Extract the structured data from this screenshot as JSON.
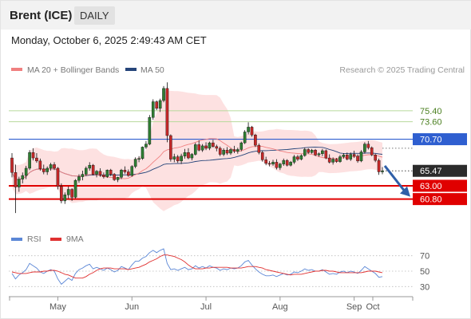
{
  "header": {
    "title": "Brent (ICE)",
    "timeframe": "DAILY",
    "date": "Monday, October 6, 2025 2:49:43 AM CET"
  },
  "legend": {
    "ma20_label": "MA 20 + Bollinger Bands",
    "ma50_label": "MA 50",
    "credit": "Research © 2025 Trading Central",
    "rsi_label": "RSI",
    "rsi_ma_label": "9MA"
  },
  "colors": {
    "candle_up": "#2e7d32",
    "candle_down": "#c62828",
    "bollinger_fill": "#fddcdc",
    "ma20": "#f08080",
    "ma50": "#26457a",
    "resistance_line": "#2f5fd0",
    "support_line": "#e00000",
    "target_line": "#b7d99b",
    "target_text": "#4a7f1f",
    "rsi": "#5b87d6",
    "rsi_ma": "#e03030",
    "arrow": "#2f5fa8",
    "last_price_tag": "#2b2b2b"
  },
  "chart_data": [
    {
      "type": "candlestick",
      "title": "Brent (ICE)",
      "ylim": [
        56.4,
        80.4
      ],
      "x_ticks": [
        "May",
        "Jun",
        "Jul",
        "Aug",
        "Sep",
        "Oct"
      ],
      "levels": {
        "targets": [
          "75.40",
          "73.60"
        ],
        "resistance": "70.70",
        "last": "65.47",
        "supports": [
          "63.00",
          "60.80"
        ]
      },
      "forecast_arrow": {
        "from": 66.3,
        "to": 61.6,
        "direction": "down"
      },
      "ohlc": [
        [
          67.6,
          68.4,
          64.4,
          65.2
        ],
        [
          65.2,
          66.5,
          58.5,
          62.8
        ],
        [
          62.8,
          64.5,
          62.0,
          64.1
        ],
        [
          64.1,
          65.2,
          63.4,
          64.7
        ],
        [
          64.7,
          66.3,
          64.1,
          65.9
        ],
        [
          65.9,
          68.9,
          65.6,
          68.5
        ],
        [
          68.5,
          69.2,
          67.2,
          67.6
        ],
        [
          67.6,
          68.4,
          66.8,
          67.1
        ],
        [
          67.1,
          67.5,
          65.5,
          65.8
        ],
        [
          65.8,
          66.5,
          64.9,
          65.3
        ],
        [
          65.3,
          66.2,
          64.8,
          65.9
        ],
        [
          65.9,
          66.8,
          65.5,
          66.5
        ],
        [
          66.5,
          66.9,
          65.6,
          65.9
        ],
        [
          65.9,
          66.1,
          62.4,
          62.9
        ],
        [
          62.9,
          63.4,
          60.1,
          60.5
        ],
        [
          60.5,
          61.9,
          60.0,
          61.5
        ],
        [
          61.5,
          62.9,
          60.9,
          62.4
        ],
        [
          62.4,
          62.6,
          60.5,
          61.1
        ],
        [
          61.1,
          64.1,
          60.9,
          63.9
        ],
        [
          63.9,
          64.9,
          63.5,
          64.5
        ],
        [
          64.5,
          65.5,
          63.9,
          64.9
        ],
        [
          64.9,
          66.2,
          64.6,
          65.9
        ],
        [
          65.9,
          66.9,
          65.5,
          66.4
        ],
        [
          66.4,
          66.6,
          64.7,
          64.9
        ],
        [
          64.9,
          65.6,
          64.4,
          65.4
        ],
        [
          65.4,
          65.9,
          64.5,
          64.8
        ],
        [
          64.8,
          65.2,
          64.2,
          64.5
        ],
        [
          64.5,
          65.7,
          64.3,
          65.6
        ],
        [
          65.6,
          65.8,
          64.6,
          64.9
        ],
        [
          64.9,
          65.1,
          63.8,
          64.0
        ],
        [
          64.0,
          64.5,
          63.6,
          64.4
        ],
        [
          64.4,
          65.8,
          64.1,
          65.6
        ],
        [
          65.6,
          66.2,
          65.0,
          65.3
        ],
        [
          65.3,
          65.7,
          64.5,
          64.7
        ],
        [
          64.7,
          66.4,
          64.5,
          66.2
        ],
        [
          66.2,
          67.7,
          65.9,
          67.4
        ],
        [
          67.4,
          67.9,
          66.9,
          67.5
        ],
        [
          67.5,
          69.5,
          67.3,
          69.4
        ],
        [
          69.4,
          70.4,
          69.1,
          69.9
        ],
        [
          69.9,
          74.7,
          69.7,
          74.3
        ],
        [
          74.3,
          77.3,
          73.9,
          76.9
        ],
        [
          76.9,
          77.1,
          75.5,
          75.8
        ],
        [
          75.8,
          77.4,
          75.2,
          77.1
        ],
        [
          77.1,
          79.5,
          76.8,
          79.1
        ],
        [
          79.1,
          80.1,
          70.2,
          71.3
        ],
        [
          71.3,
          71.5,
          67.0,
          67.4
        ],
        [
          67.4,
          68.3,
          66.9,
          67.8
        ],
        [
          67.8,
          68.1,
          66.8,
          67.1
        ],
        [
          67.1,
          68.3,
          66.6,
          67.9
        ],
        [
          67.9,
          69.1,
          67.5,
          68.5
        ],
        [
          68.5,
          69.2,
          67.4,
          67.6
        ],
        [
          67.6,
          68.4,
          67.2,
          68.2
        ],
        [
          68.2,
          70.1,
          68.0,
          69.8
        ],
        [
          69.8,
          70.5,
          68.7,
          68.9
        ],
        [
          68.9,
          69.9,
          68.6,
          69.6
        ],
        [
          69.6,
          70.2,
          68.9,
          69.2
        ],
        [
          69.2,
          70.3,
          68.9,
          70.1
        ],
        [
          70.1,
          70.6,
          69.3,
          69.5
        ],
        [
          69.5,
          69.8,
          68.7,
          69.2
        ],
        [
          69.2,
          69.5,
          67.9,
          68.2
        ],
        [
          68.2,
          69.2,
          67.9,
          68.9
        ],
        [
          68.9,
          69.4,
          68.1,
          68.4
        ],
        [
          68.4,
          69.2,
          68.1,
          69.0
        ],
        [
          69.0,
          69.6,
          68.4,
          68.7
        ],
        [
          68.7,
          69.3,
          68.3,
          69.0
        ],
        [
          69.0,
          70.3,
          68.7,
          70.1
        ],
        [
          70.1,
          72.2,
          69.9,
          71.9
        ],
        [
          71.9,
          73.5,
          71.5,
          72.7
        ],
        [
          72.7,
          72.9,
          71.1,
          71.4
        ],
        [
          71.4,
          71.6,
          69.4,
          69.7
        ],
        [
          69.7,
          70.0,
          68.2,
          68.5
        ],
        [
          68.5,
          68.8,
          67.0,
          67.3
        ],
        [
          67.3,
          67.8,
          66.4,
          66.7
        ],
        [
          66.7,
          67.1,
          66.2,
          66.6
        ],
        [
          66.6,
          67.3,
          66.3,
          66.9
        ],
        [
          66.9,
          67.4,
          65.7,
          66.0
        ],
        [
          66.0,
          66.8,
          65.6,
          66.6
        ],
        [
          66.6,
          67.5,
          66.3,
          67.2
        ],
        [
          67.2,
          67.4,
          66.2,
          66.4
        ],
        [
          66.4,
          67.1,
          66.2,
          66.9
        ],
        [
          66.9,
          68.1,
          66.6,
          67.8
        ],
        [
          67.8,
          68.1,
          67.1,
          67.4
        ],
        [
          67.4,
          68.2,
          67.2,
          68.0
        ],
        [
          68.0,
          69.3,
          67.8,
          69.0
        ],
        [
          69.0,
          69.2,
          68.3,
          68.5
        ],
        [
          68.5,
          69.1,
          68.3,
          68.9
        ],
        [
          68.9,
          69.1,
          67.9,
          68.1
        ],
        [
          68.1,
          68.5,
          67.8,
          68.3
        ],
        [
          68.3,
          69.1,
          67.9,
          68.8
        ],
        [
          68.8,
          69.0,
          67.4,
          67.6
        ],
        [
          67.6,
          68.2,
          66.7,
          66.9
        ],
        [
          66.9,
          67.7,
          66.5,
          67.4
        ],
        [
          67.4,
          67.6,
          66.8,
          67.0
        ],
        [
          67.0,
          68.1,
          66.8,
          67.8
        ],
        [
          67.8,
          68.4,
          67.5,
          68.1
        ],
        [
          68.1,
          68.5,
          67.2,
          67.4
        ],
        [
          67.4,
          68.5,
          67.1,
          68.2
        ],
        [
          68.2,
          68.8,
          67.6,
          67.9
        ],
        [
          67.9,
          68.2,
          66.8,
          67.1
        ],
        [
          67.1,
          68.9,
          66.9,
          68.6
        ],
        [
          68.6,
          70.2,
          68.3,
          69.9
        ],
        [
          69.9,
          70.4,
          69.0,
          69.3
        ],
        [
          69.3,
          69.5,
          67.9,
          68.1
        ],
        [
          68.1,
          68.3,
          66.9,
          67.2
        ],
        [
          67.2,
          67.5,
          64.8,
          65.3
        ],
        [
          65.3,
          66.1,
          64.9,
          65.47
        ]
      ]
    },
    {
      "type": "line",
      "title": "RSI",
      "ylim": [
        20,
        80
      ],
      "y_ticks": [
        "70",
        "50",
        "30"
      ],
      "series": [
        {
          "name": "RSI",
          "values": [
            47,
            40,
            45,
            48,
            52,
            60,
            57,
            54,
            49,
            47,
            50,
            52,
            50,
            40,
            33,
            37,
            41,
            38,
            47,
            52,
            54,
            57,
            59,
            53,
            55,
            53,
            51,
            54,
            52,
            49,
            51,
            56,
            54,
            52,
            58,
            63,
            63,
            67,
            69,
            74,
            77,
            74,
            77,
            79,
            60,
            52,
            53,
            51,
            53,
            55,
            52,
            53,
            57,
            54,
            56,
            54,
            57,
            55,
            54,
            51,
            53,
            52,
            54,
            53,
            54,
            57,
            62,
            64,
            58,
            53,
            49,
            46,
            44,
            44,
            45,
            43,
            45,
            47,
            45,
            46,
            49,
            48,
            50,
            53,
            51,
            52,
            50,
            50,
            52,
            49,
            46,
            47,
            46,
            49,
            50,
            48,
            50,
            49,
            47,
            51,
            56,
            53,
            50,
            47,
            42,
            43
          ]
        },
        {
          "name": "9MA",
          "values": [
            49,
            48,
            47,
            47,
            47,
            48,
            49,
            49,
            49,
            50,
            50,
            51,
            51,
            50,
            48,
            46,
            45,
            43,
            41,
            41,
            41,
            43,
            46,
            48,
            51,
            53,
            54,
            54,
            54,
            53,
            53,
            53,
            53,
            52,
            53,
            54,
            55,
            57,
            59,
            62,
            64,
            66,
            69,
            71,
            71,
            70,
            69,
            67,
            65,
            62,
            58,
            55,
            53,
            53,
            53,
            54,
            54,
            55,
            55,
            55,
            55,
            55,
            54,
            54,
            54,
            54,
            55,
            56,
            56,
            56,
            55,
            54,
            52,
            51,
            50,
            49,
            48,
            47,
            46,
            45,
            46,
            46,
            46,
            47,
            48,
            49,
            50,
            50,
            51,
            51,
            50,
            50,
            49,
            48,
            48,
            48,
            48,
            48,
            48,
            48,
            49,
            50,
            50,
            50,
            49,
            48
          ]
        }
      ]
    }
  ]
}
